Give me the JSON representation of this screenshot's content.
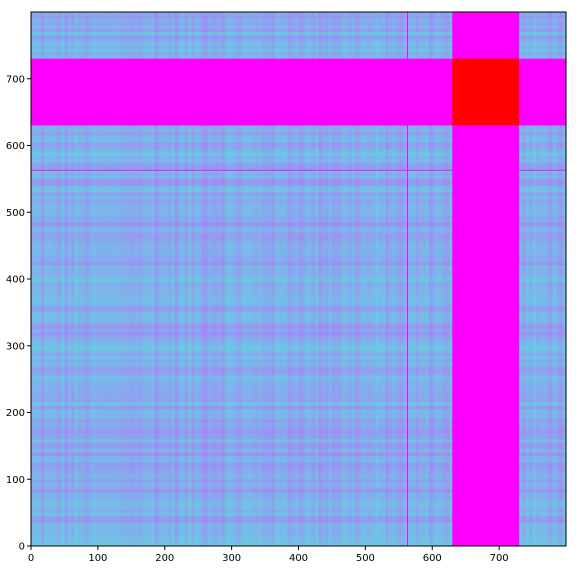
{
  "chart_data": {
    "type": "heatmap",
    "title": "",
    "xlabel": "",
    "ylabel": "",
    "xlim": [
      0,
      800
    ],
    "ylim": [
      0,
      800
    ],
    "origin": "lower-left",
    "grid": false,
    "legend": "none",
    "x_ticks": [
      0,
      100,
      200,
      300,
      400,
      500,
      600,
      700
    ],
    "y_ticks": [
      0,
      100,
      200,
      300,
      400,
      500,
      600,
      700
    ],
    "colormap": {
      "name": "rainbow-low-range",
      "low": "#7f00ff",
      "mid": "#3a7ff8",
      "light": "#40c0ff",
      "high": "#ff0000"
    },
    "background_level": "mixed 0.15-0.35 noise",
    "features": [
      {
        "name": "horizontal band",
        "kind": "band",
        "axis": "y",
        "range": [
          630,
          730
        ],
        "level": 0.0
      },
      {
        "name": "vertical band",
        "kind": "band",
        "axis": "x",
        "range": [
          630,
          730
        ],
        "level": 0.0
      },
      {
        "name": "intersection block",
        "kind": "block",
        "x_range": [
          630,
          730
        ],
        "y_range": [
          630,
          730
        ],
        "level": 1.0
      },
      {
        "name": "vertical line",
        "kind": "line",
        "axis": "x",
        "value": 563,
        "level": 0.0
      },
      {
        "name": "horizontal line",
        "kind": "line",
        "axis": "y",
        "value": 563,
        "level": 0.0
      }
    ]
  }
}
